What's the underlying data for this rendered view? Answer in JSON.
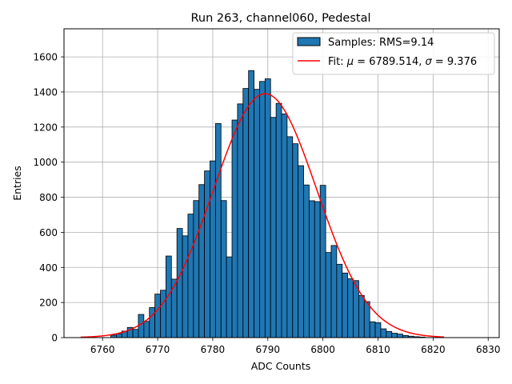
{
  "chart_data": {
    "type": "bar",
    "title": "Run 263, channel060, Pedestal",
    "xlabel": "ADC Counts",
    "ylabel": "Entries",
    "xlim": [
      6753,
      6832
    ],
    "ylim": [
      0,
      1760
    ],
    "xticks": [
      6760,
      6770,
      6780,
      6790,
      6800,
      6810,
      6820,
      6830
    ],
    "yticks": [
      0,
      200,
      400,
      600,
      800,
      1000,
      1200,
      1400,
      1600
    ],
    "grid": true,
    "legend_position": "top-right",
    "bin_width": 1,
    "histogram": {
      "name": "Samples: RMS=9.14",
      "color": "#1f77b4",
      "bins": [
        6762,
        6763,
        6764,
        6765,
        6766,
        6767,
        6768,
        6769,
        6770,
        6771,
        6772,
        6773,
        6774,
        6775,
        6776,
        6777,
        6778,
        6779,
        6780,
        6781,
        6782,
        6783,
        6784,
        6785,
        6786,
        6787,
        6788,
        6789,
        6790,
        6791,
        6792,
        6793,
        6794,
        6795,
        6796,
        6797,
        6798,
        6799,
        6800,
        6801,
        6802,
        6803,
        6804,
        6805,
        6806,
        6807,
        6808,
        6809,
        6810,
        6811,
        6812,
        6813,
        6814,
        6815,
        6816,
        6817,
        6818
      ],
      "counts": [
        14,
        22,
        37,
        58,
        47,
        132,
        92,
        171,
        248,
        270,
        465,
        333,
        622,
        580,
        704,
        781,
        872,
        950,
        1007,
        1220,
        781,
        460,
        1240,
        1332,
        1420,
        1522,
        1415,
        1460,
        1475,
        1255,
        1335,
        1275,
        1145,
        1105,
        980,
        870,
        780,
        775,
        868,
        485,
        525,
        418,
        368,
        335,
        325,
        240,
        205,
        90,
        85,
        50,
        35,
        25,
        20,
        12,
        8,
        5,
        3
      ]
    },
    "fit": {
      "name_prefix": "Fit: ",
      "name_mu": "μ",
      "name_mid": " = 6789.514, ",
      "name_sigma": "σ",
      "name_suffix": " = 9.376",
      "color": "#ff0000",
      "mu": 6789.514,
      "sigma": 9.376,
      "amplitude": 1390,
      "x_range": [
        6756,
        6822
      ]
    }
  }
}
